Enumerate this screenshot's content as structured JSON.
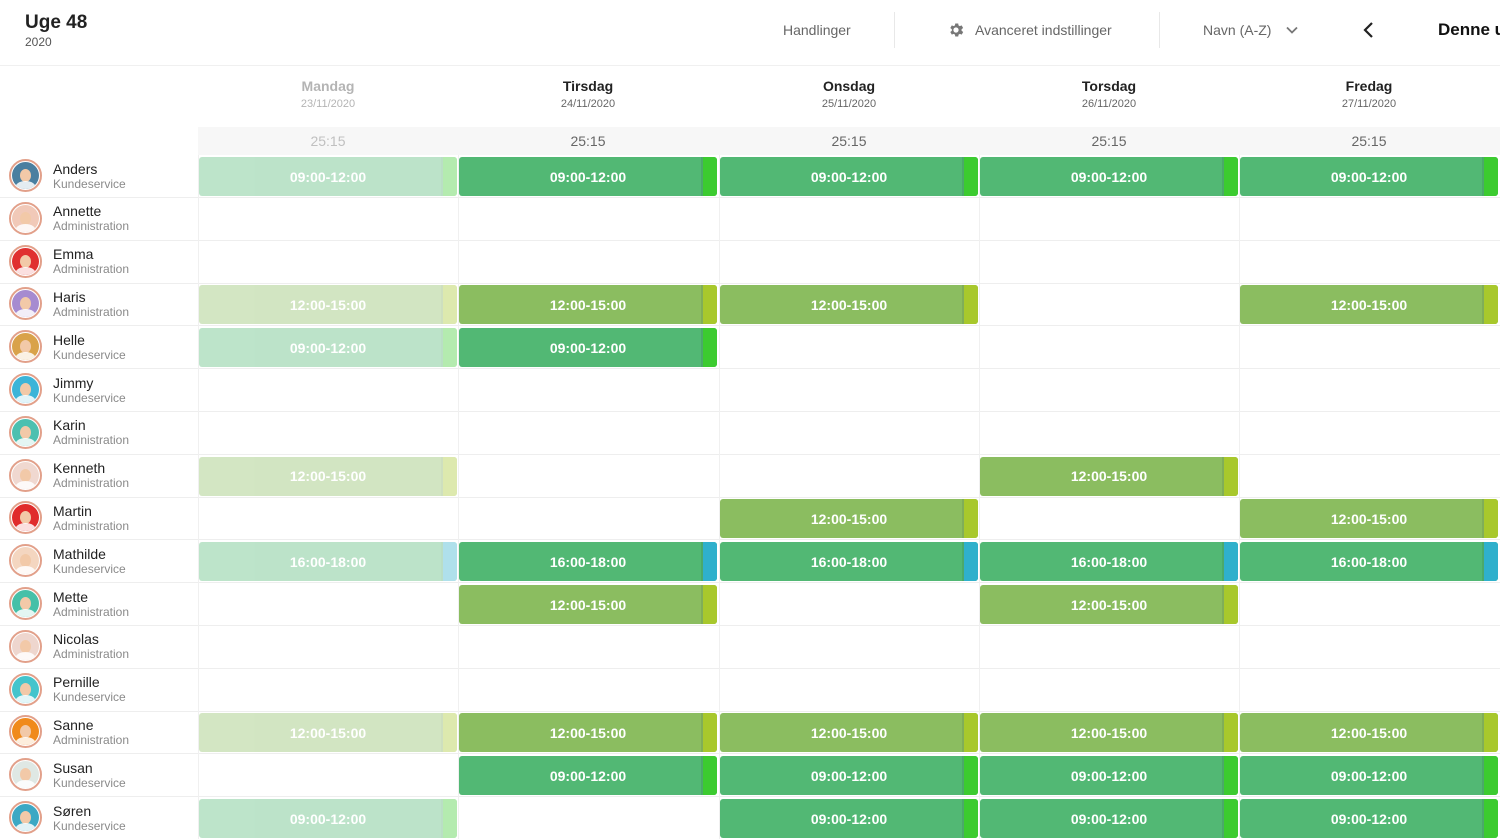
{
  "header": {
    "week_title": "Uge 48",
    "year": "2020",
    "actions_label": "Handlinger",
    "advanced_label": "Avanceret indstillinger",
    "sort_label": "Navn (A-Z)",
    "this_week_label": "Denne u"
  },
  "days": [
    {
      "name": "Mandag",
      "date": "23/11/2020",
      "total": "25:15",
      "past": true
    },
    {
      "name": "Tirsdag",
      "date": "24/11/2020",
      "total": "25:15",
      "past": false
    },
    {
      "name": "Onsdag",
      "date": "25/11/2020",
      "total": "25:15",
      "past": false
    },
    {
      "name": "Torsdag",
      "date": "26/11/2020",
      "total": "25:15",
      "past": false
    },
    {
      "name": "Fredag",
      "date": "27/11/2020",
      "total": "25:15",
      "past": false
    }
  ],
  "shift_colors": {
    "morning": "#52b874",
    "mid": "#8bbd60",
    "evening": "#52b874",
    "morning_stripe": "#3ccb30",
    "mid_stripe": "#a8c82c",
    "evening_stripe": "#2fb0cc"
  },
  "employees": [
    {
      "name": "Anders",
      "dept": "Kundeservice",
      "avatar_color": "#4a7fa0",
      "shifts": [
        "09:00-12:00",
        "09:00-12:00",
        "09:00-12:00",
        "09:00-12:00",
        "09:00-12:00"
      ]
    },
    {
      "name": "Annette",
      "dept": "Administration",
      "avatar_color": "#f1c9b8",
      "shifts": [
        "",
        "",
        "",
        "",
        ""
      ]
    },
    {
      "name": "Emma",
      "dept": "Administration",
      "avatar_color": "#e03030",
      "shifts": [
        "",
        "",
        "",
        "",
        ""
      ]
    },
    {
      "name": "Haris",
      "dept": "Administration",
      "avatar_color": "#a68bd0",
      "shifts": [
        "12:00-15:00",
        "12:00-15:00",
        "12:00-15:00",
        "",
        "12:00-15:00"
      ]
    },
    {
      "name": "Helle",
      "dept": "Kundeservice",
      "avatar_color": "#d9a24a",
      "shifts": [
        "09:00-12:00",
        "09:00-12:00",
        "",
        "",
        ""
      ]
    },
    {
      "name": "Jimmy",
      "dept": "Kundeservice",
      "avatar_color": "#3cb4d8",
      "shifts": [
        "",
        "",
        "",
        "",
        ""
      ]
    },
    {
      "name": "Karin",
      "dept": "Administration",
      "avatar_color": "#4cc0b0",
      "shifts": [
        "",
        "",
        "",
        "",
        ""
      ]
    },
    {
      "name": "Kenneth",
      "dept": "Administration",
      "avatar_color": "#f0d8d0",
      "shifts": [
        "12:00-15:00",
        "",
        "",
        "12:00-15:00",
        ""
      ]
    },
    {
      "name": "Martin",
      "dept": "Administration",
      "avatar_color": "#e02c2c",
      "shifts": [
        "",
        "",
        "12:00-15:00",
        "",
        "12:00-15:00"
      ]
    },
    {
      "name": "Mathilde",
      "dept": "Kundeservice",
      "avatar_color": "#f4d6c0",
      "shifts": [
        "16:00-18:00",
        "16:00-18:00",
        "16:00-18:00",
        "16:00-18:00",
        "16:00-18:00"
      ]
    },
    {
      "name": "Mette",
      "dept": "Administration",
      "avatar_color": "#46c0a8",
      "shifts": [
        "",
        "12:00-15:00",
        "",
        "12:00-15:00",
        ""
      ]
    },
    {
      "name": "Nicolas",
      "dept": "Administration",
      "avatar_color": "#eed6ce",
      "shifts": [
        "",
        "",
        "",
        "",
        ""
      ]
    },
    {
      "name": "Pernille",
      "dept": "Kundeservice",
      "avatar_color": "#44c4cc",
      "shifts": [
        "",
        "",
        "",
        "",
        ""
      ]
    },
    {
      "name": "Sanne",
      "dept": "Administration",
      "avatar_color": "#f08a1c",
      "shifts": [
        "12:00-15:00",
        "12:00-15:00",
        "12:00-15:00",
        "12:00-15:00",
        "12:00-15:00"
      ]
    },
    {
      "name": "Susan",
      "dept": "Kundeservice",
      "avatar_color": "#dfe8e4",
      "shifts": [
        "",
        "09:00-12:00",
        "09:00-12:00",
        "09:00-12:00",
        "09:00-12:00"
      ]
    },
    {
      "name": "Søren",
      "dept": "Kundeservice",
      "avatar_color": "#3ca8c4",
      "shifts": [
        "09:00-12:00",
        "",
        "09:00-12:00",
        "09:00-12:00",
        "09:00-12:00"
      ]
    }
  ]
}
